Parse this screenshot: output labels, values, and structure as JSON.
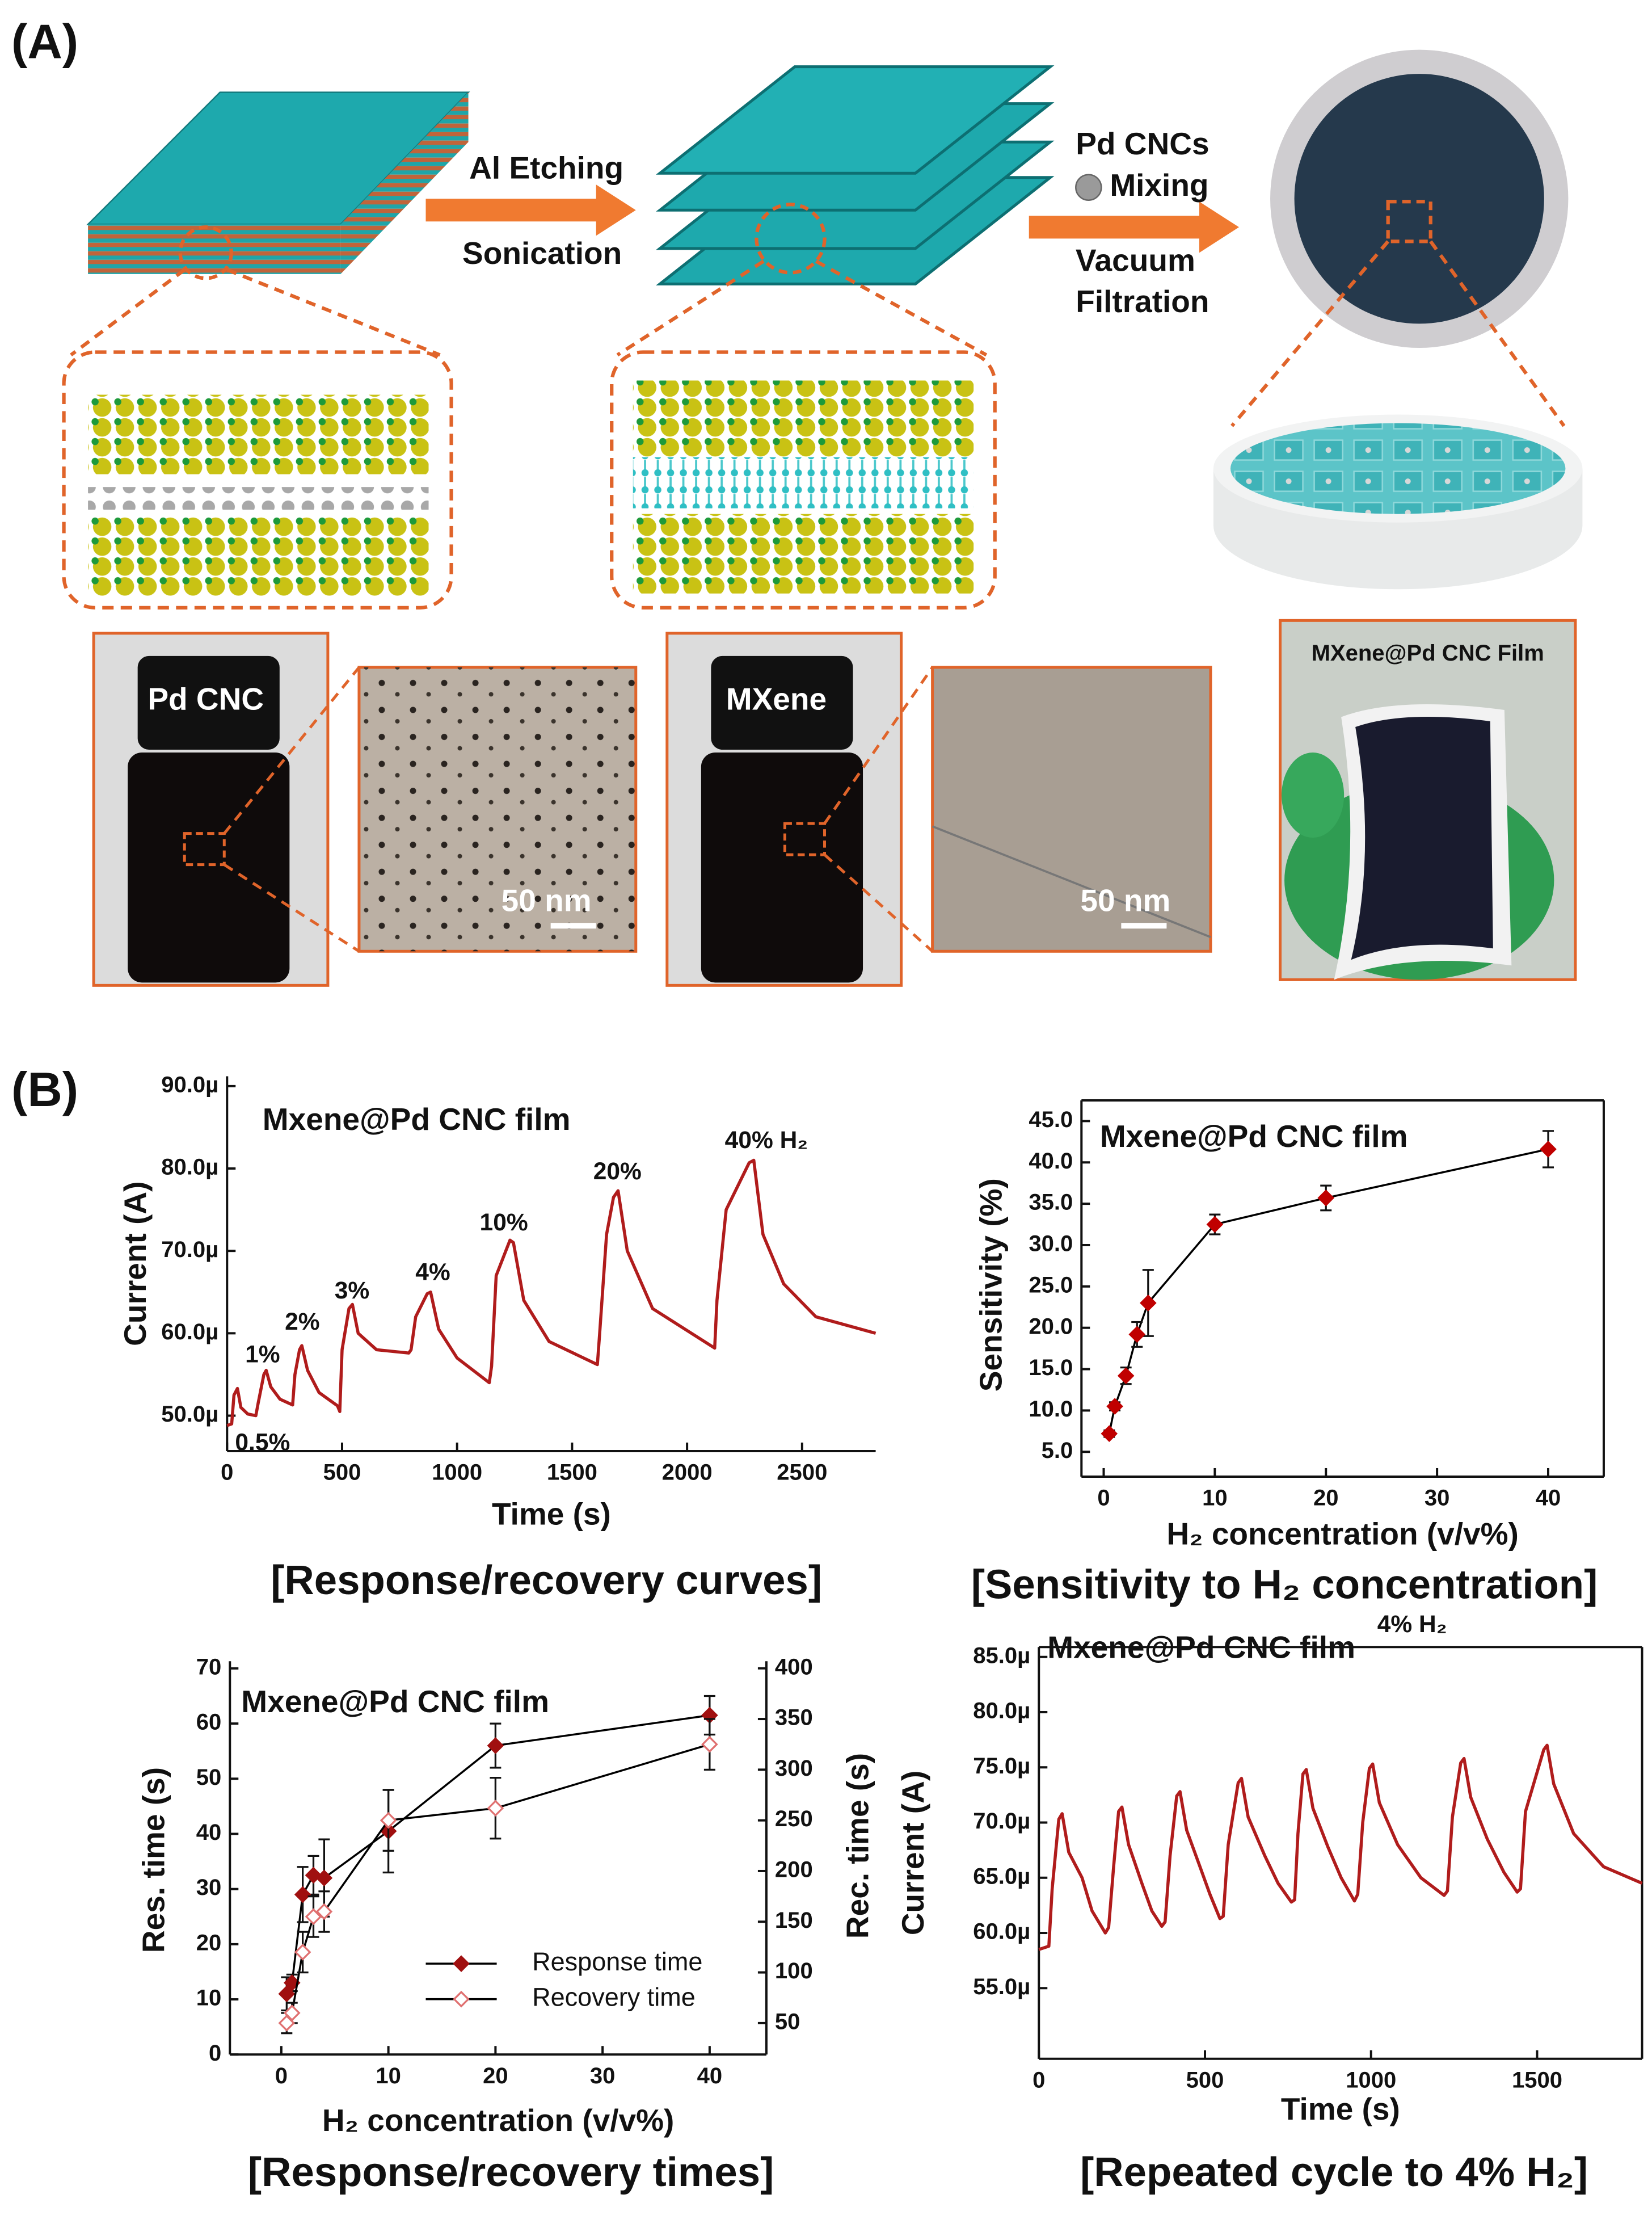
{
  "panel_a": {
    "label": "(A)",
    "arrow1": [
      "Al Etching",
      "Sonication"
    ],
    "arrow2": [
      "Pd CNCs",
      "Mixing",
      "Vacuum",
      "Filtration"
    ],
    "photos": [
      {
        "label": "Pd CNC",
        "scale": "50 nm"
      },
      {
        "label": "MXene",
        "scale": "50 nm"
      }
    ],
    "film": "MXene@Pd CNC Film"
  },
  "panel_b": {
    "label": "(B)"
  },
  "chart_data": [
    {
      "type": "line",
      "title": "Mxene@Pd CNC film",
      "caption": "[Response/recovery curves]",
      "x_label": "Time (s)",
      "y_label": "Current (A)",
      "annotations": [
        "0.5%",
        "1%",
        "2%",
        "3%",
        "4%",
        "10%",
        "20%",
        "40% H₂"
      ],
      "xlim": [
        0,
        2820
      ],
      "xticks": [
        0,
        500,
        1000,
        1500,
        2000,
        2500
      ],
      "ylim": [
        4.57e-05,
        9.12e-05
      ],
      "yticks": [
        {
          "value": 5e-05,
          "label": "50.0µ"
        },
        {
          "value": 6e-05,
          "label": "60.0µ"
        },
        {
          "value": 7e-05,
          "label": "70.0µ"
        },
        {
          "value": 8e-05,
          "label": "80.0µ"
        },
        {
          "value": 9e-05,
          "label": "90.0µ"
        }
      ],
      "x": [
        0,
        20,
        30,
        45,
        60,
        90,
        125,
        135,
        160,
        170,
        190,
        230,
        285,
        295,
        315,
        325,
        350,
        400,
        480,
        490,
        500,
        530,
        545,
        570,
        650,
        790,
        800,
        820,
        870,
        885,
        920,
        1000,
        1140,
        1150,
        1170,
        1230,
        1245,
        1290,
        1400,
        1610,
        1620,
        1650,
        1680,
        1700,
        1740,
        1850,
        2120,
        2130,
        2170,
        2270,
        2290,
        2330,
        2420,
        2560,
        2820
      ],
      "series": [
        {
          "color": "#b01c1c",
          "values": [
            4.88e-05,
            4.9e-05,
            5.25e-05,
            5.33e-05,
            5.1e-05,
            5.02e-05,
            5e-05,
            5.15e-05,
            5.5e-05,
            5.55e-05,
            5.35e-05,
            5.2e-05,
            5.13e-05,
            5.5e-05,
            5.8e-05,
            5.85e-05,
            5.55e-05,
            5.28e-05,
            5.12e-05,
            5.05e-05,
            5.8e-05,
            6.3e-05,
            6.35e-05,
            6e-05,
            5.8e-05,
            5.76e-05,
            5.8e-05,
            6.2e-05,
            6.48e-05,
            6.5e-05,
            6.05e-05,
            5.7e-05,
            5.4e-05,
            5.6e-05,
            6.7e-05,
            7.13e-05,
            7.1e-05,
            6.4e-05,
            5.9e-05,
            5.62e-05,
            6e-05,
            7.2e-05,
            7.65e-05,
            7.73e-05,
            7e-05,
            6.3e-05,
            5.82e-05,
            6.4e-05,
            7.5e-05,
            8.07e-05,
            8.1e-05,
            7.2e-05,
            6.6e-05,
            6.2e-05,
            6e-05
          ]
        }
      ]
    },
    {
      "type": "line",
      "title": "Mxene@Pd CNC film",
      "caption": "[Sensitivity to H₂ concentration]",
      "x_label": "H₂ concentration (v/v%)",
      "y_label": "Sensitivity (%)",
      "xlim": [
        -2,
        45
      ],
      "xticks": [
        0,
        10,
        20,
        30,
        40
      ],
      "ylim": [
        2,
        47.5
      ],
      "yticks": [
        {
          "value": 5,
          "label": "5.0"
        },
        {
          "value": 10,
          "label": "10.0"
        },
        {
          "value": 15,
          "label": "15.0"
        },
        {
          "value": 20,
          "label": "20.0"
        },
        {
          "value": 25,
          "label": "25.0"
        },
        {
          "value": 30,
          "label": "30.0"
        },
        {
          "value": 35,
          "label": "35.0"
        },
        {
          "value": 40,
          "label": "40.0"
        },
        {
          "value": 45,
          "label": "45.0"
        }
      ],
      "x": [
        0.5,
        1,
        2,
        3,
        4,
        10,
        20,
        40
      ],
      "series": [
        {
          "color": "#c00000",
          "line_color": "#000000",
          "marker": "diamond",
          "values": [
            7.2,
            10.5,
            14.2,
            19.2,
            23.0,
            32.5,
            35.7,
            41.6
          ],
          "errors": [
            0.4,
            0.5,
            1.0,
            1.5,
            4.0,
            1.2,
            1.5,
            2.2
          ]
        }
      ]
    },
    {
      "type": "line",
      "title": "Mxene@Pd CNC film",
      "caption": "[Response/recovery times]",
      "x_label": "H₂ concentration (v/v%)",
      "y_label": "Res. time (s)",
      "y2_label": "Rec. time (s)",
      "xlim": [
        -4.8,
        45.3
      ],
      "xticks": [
        0,
        10,
        20,
        30,
        40
      ],
      "ylim": [
        0,
        71.3
      ],
      "yticks": [
        0,
        10,
        20,
        30,
        40,
        50,
        60,
        70
      ],
      "y2lim": [
        19,
        407
      ],
      "y2ticks": [
        50,
        100,
        150,
        200,
        250,
        300,
        350,
        400
      ],
      "legend": "lower right",
      "x": [
        0.5,
        1,
        2,
        3,
        4,
        10,
        20,
        40
      ],
      "series": [
        {
          "name": "Response time",
          "color": "#a01010",
          "marker_fill": "#a01010",
          "line_color": "#000000",
          "marker": "diamond",
          "values": [
            11,
            13,
            29,
            32.5,
            32,
            40.5,
            56,
            61.5
          ],
          "errors": [
            3,
            1.5,
            5,
            3.5,
            7,
            7.5,
            4,
            3.5
          ]
        },
        {
          "name": "Recovery time",
          "axis": "y2",
          "color": "#e07070",
          "marker_fill": "#ffffff",
          "line_color": "#000000",
          "marker": "diamond",
          "values": [
            50,
            60,
            120,
            155,
            160,
            250,
            262,
            325
          ],
          "errors": [
            10,
            10,
            20,
            20,
            20,
            30,
            30,
            25
          ]
        }
      ]
    },
    {
      "type": "line",
      "title": "Mxene@Pd CNC film",
      "annotations": [
        "4% H₂"
      ],
      "caption": "[Repeated cycle to 4% H₂]",
      "x_label": "Time (s)",
      "y_label": "Current (A)",
      "xlim": [
        0,
        1816
      ],
      "xticks": [
        0,
        500,
        1000,
        1500
      ],
      "ylim": [
        4.86e-05,
        8.59e-05
      ],
      "yticks": [
        {
          "value": 5.5e-05,
          "label": "55.0µ"
        },
        {
          "value": 6e-05,
          "label": "60.0µ"
        },
        {
          "value": 6.5e-05,
          "label": "65.0µ"
        },
        {
          "value": 7e-05,
          "label": "70.0µ"
        },
        {
          "value": 7.5e-05,
          "label": "75.0µ"
        },
        {
          "value": 8e-05,
          "label": "80.0µ"
        },
        {
          "value": 8.5e-05,
          "label": "85.0µ"
        }
      ],
      "x": [
        0,
        30,
        40,
        60,
        70,
        90,
        130,
        160,
        200,
        210,
        225,
        240,
        250,
        270,
        310,
        340,
        370,
        380,
        395,
        415,
        425,
        445,
        485,
        515,
        545,
        555,
        570,
        600,
        610,
        630,
        680,
        720,
        760,
        770,
        780,
        795,
        805,
        825,
        870,
        910,
        950,
        960,
        975,
        995,
        1005,
        1025,
        1080,
        1150,
        1220,
        1230,
        1245,
        1270,
        1280,
        1300,
        1350,
        1400,
        1440,
        1450,
        1465,
        1520,
        1530,
        1550,
        1610,
        1700,
        1816
      ],
      "series": [
        {
          "color": "#b01c1c",
          "values": [
            5.85e-05,
            5.88e-05,
            6.4e-05,
            7.03e-05,
            7.08e-05,
            6.73e-05,
            6.5e-05,
            6.2e-05,
            6e-05,
            6.05e-05,
            6.6e-05,
            7.1e-05,
            7.14e-05,
            6.8e-05,
            6.45e-05,
            6.2e-05,
            6.06e-05,
            6.1e-05,
            6.7e-05,
            7.24e-05,
            7.28e-05,
            6.93e-05,
            6.6e-05,
            6.35e-05,
            6.13e-05,
            6.15e-05,
            6.8e-05,
            7.36e-05,
            7.4e-05,
            7.05e-05,
            6.7e-05,
            6.45e-05,
            6.28e-05,
            6.3e-05,
            6.9e-05,
            7.44e-05,
            7.48e-05,
            7.13e-05,
            6.78e-05,
            6.5e-05,
            6.29e-05,
            6.35e-05,
            7e-05,
            7.49e-05,
            7.53e-05,
            7.18e-05,
            6.8e-05,
            6.5e-05,
            6.34e-05,
            6.38e-05,
            7.05e-05,
            7.54e-05,
            7.58e-05,
            7.23e-05,
            6.85e-05,
            6.55e-05,
            6.37e-05,
            6.4e-05,
            7.1e-05,
            7.66e-05,
            7.7e-05,
            7.35e-05,
            6.9e-05,
            6.6e-05,
            6.45e-05
          ]
        }
      ]
    }
  ]
}
